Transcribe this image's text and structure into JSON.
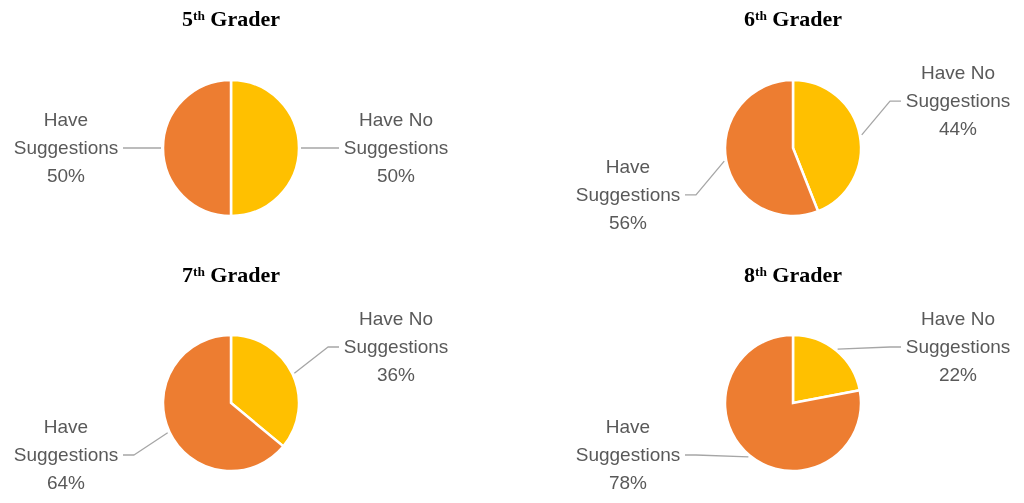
{
  "chart_data": [
    {
      "type": "pie",
      "title": "5ᵗʰ Grader",
      "categories": [
        "Have No Suggestions",
        "Have Suggestions"
      ],
      "values": [
        50,
        50
      ],
      "colors": [
        "#ffc000",
        "#ed7d31"
      ],
      "value_labels": [
        "50%",
        "50%"
      ]
    },
    {
      "type": "pie",
      "title": "6ᵗʰ Grader",
      "categories": [
        "Have No Suggestions",
        "Have Suggestions"
      ],
      "values": [
        44,
        56
      ],
      "colors": [
        "#ffc000",
        "#ed7d31"
      ],
      "value_labels": [
        "44%",
        "56%"
      ]
    },
    {
      "type": "pie",
      "title": "7ᵗʰ Grader",
      "categories": [
        "Have No Suggestions",
        "Have Suggestions"
      ],
      "values": [
        36,
        64
      ],
      "colors": [
        "#ffc000",
        "#ed7d31"
      ],
      "value_labels": [
        "36%",
        "64%"
      ]
    },
    {
      "type": "pie",
      "title": "8ᵗʰ Grader",
      "categories": [
        "Have No Suggestions",
        "Have Suggestions"
      ],
      "values": [
        22,
        78
      ],
      "colors": [
        "#ffc000",
        "#ed7d31"
      ],
      "value_labels": [
        "22%",
        "78%"
      ]
    }
  ]
}
